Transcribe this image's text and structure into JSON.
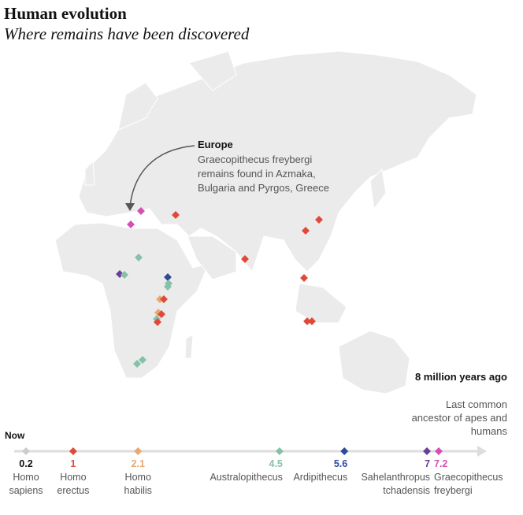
{
  "header": {
    "title": "Human evolution",
    "subtitle": "Where remains have been discovered"
  },
  "annotation": {
    "heading": "Europe",
    "body": "Graecopithecus freybergi remains found in Azmaka, Bulgaria and Pyrgos, Greece"
  },
  "timeline": {
    "start_label": "Now",
    "end_heading": "8 million years ago",
    "end_body": "Last common ancestor of apes and humans",
    "unit": "million years ago",
    "max": 8,
    "species": [
      {
        "value": "0.2",
        "name": "Homo sapiens",
        "color": "#cccccc",
        "value_color": "#111111",
        "align": "center"
      },
      {
        "value": "1",
        "name": "Homo erectus",
        "color": "#e0493a",
        "value_color": "#e0493a",
        "align": "center"
      },
      {
        "value": "2.1",
        "name": "Homo habilis",
        "color": "#e8a870",
        "value_color": "#e8a870",
        "align": "center"
      },
      {
        "value": "4.5",
        "name": "Australopithecus",
        "color": "#85c1a8",
        "value_color": "#85c1a8",
        "align": "right"
      },
      {
        "value": "5.6",
        "name": "Ardipithecus",
        "color": "#2e4a9a",
        "value_color": "#2e4a9a",
        "align": "right"
      },
      {
        "value": "7",
        "name": "Sahelanthropus tchadensis",
        "color": "#6a3d9a",
        "value_color": "#6a3d9a",
        "align": "right"
      },
      {
        "value": "7.2",
        "name": "Graecopithecus freybergi",
        "color": "#d44fb5",
        "value_color": "#d44fb5",
        "align": "left"
      }
    ]
  },
  "colors": {
    "land": "#ebebeb",
    "border": "#ffffff",
    "axis": "#dddddd",
    "arrow": "#555555"
  }
}
